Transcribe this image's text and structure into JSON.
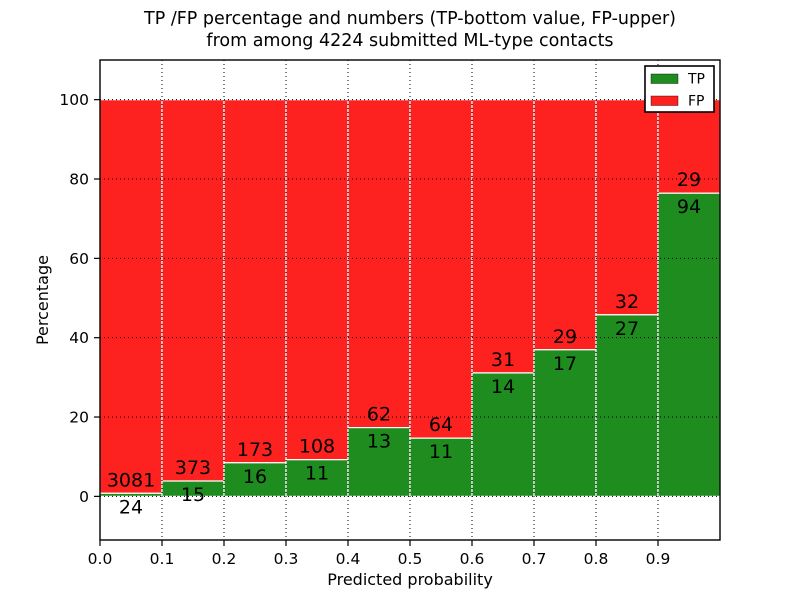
{
  "figure": {
    "title_line1": "TP /FP percentage and numbers (TP-bottom value, FP-upper)",
    "title_line2": "from among 4224 submitted ML-type contacts"
  },
  "chart_data": {
    "type": "bar",
    "stacked": true,
    "normalized": "percent",
    "title": "TP /FP percentage and numbers (TP-bottom value, FP-upper) from among 4224 submitted ML-type contacts",
    "total_contacts": 4224,
    "xlabel": "Predicted probability",
    "ylabel": "Percentage",
    "xlim": [
      0.0,
      1.0
    ],
    "ylim": [
      -11,
      110
    ],
    "xticks": [
      "0.0",
      "0.1",
      "0.2",
      "0.3",
      "0.4",
      "0.5",
      "0.6",
      "0.7",
      "0.8",
      "0.9"
    ],
    "yticks": [
      0,
      20,
      40,
      60,
      80,
      100
    ],
    "grid": "dotted-both-axes-drawn-over-bars",
    "legend_position": "upper right",
    "categories": [
      "0.0-0.1",
      "0.1-0.2",
      "0.2-0.3",
      "0.3-0.4",
      "0.4-0.5",
      "0.5-0.6",
      "0.6-0.7",
      "0.7-0.8",
      "0.8-0.9",
      "0.9-1.0"
    ],
    "series": [
      {
        "name": "TP",
        "color": "#1e8c1e",
        "values": [
          24,
          15,
          16,
          11,
          13,
          11,
          14,
          17,
          27,
          94
        ]
      },
      {
        "name": "FP",
        "color": "#fd221f",
        "values": [
          3081,
          373,
          173,
          108,
          62,
          64,
          31,
          29,
          32,
          29
        ]
      }
    ],
    "bar_edge_color": "#ffffff",
    "axis_color": "#000000"
  },
  "legend": {
    "items": [
      {
        "label": "TP",
        "color": "#1e8c1e"
      },
      {
        "label": "FP",
        "color": "#fd221f"
      }
    ]
  }
}
